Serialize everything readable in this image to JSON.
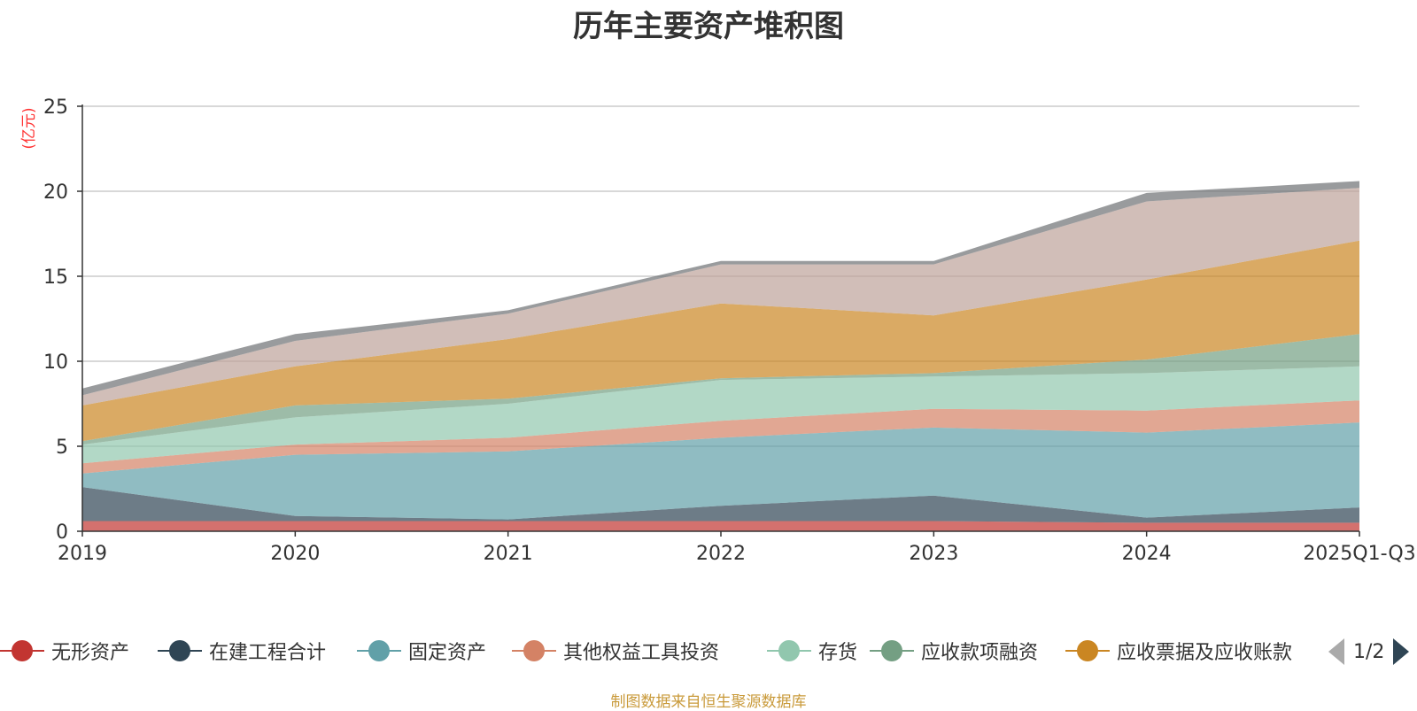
{
  "title": "历年主要资产堆积图",
  "source": "制图数据来自恒生聚源数据库",
  "chart_data": {
    "type": "area",
    "stacked": true,
    "title": "历年主要资产堆积图",
    "ylabel": "(亿元)",
    "xlabel": "",
    "ylim": [
      0,
      25
    ],
    "yticks": [
      0,
      5,
      10,
      15,
      20,
      25
    ],
    "grid": true,
    "categories": [
      "2019",
      "2020",
      "2021",
      "2022",
      "2023",
      "2024",
      "2025Q1-Q3"
    ],
    "series": [
      {
        "name": "无形资产",
        "color": "#c23531",
        "legend": true,
        "values": [
          0.6,
          0.6,
          0.6,
          0.6,
          0.6,
          0.5,
          0.5
        ]
      },
      {
        "name": "在建工程合计",
        "color": "#2f4554",
        "legend": true,
        "values": [
          2.0,
          0.3,
          0.1,
          0.9,
          1.5,
          0.3,
          0.9
        ]
      },
      {
        "name": "固定资产",
        "color": "#61a0a8",
        "legend": true,
        "values": [
          0.8,
          3.6,
          4.0,
          4.0,
          4.0,
          5.0,
          5.0
        ]
      },
      {
        "name": "其他权益工具投资",
        "color": "#d48265",
        "legend": true,
        "values": [
          0.6,
          0.6,
          0.8,
          1.0,
          1.1,
          1.3,
          1.3
        ]
      },
      {
        "name": "存货",
        "color": "#91c7ae",
        "legend": true,
        "values": [
          1.1,
          1.6,
          2.0,
          2.4,
          1.9,
          2.2,
          2.0
        ]
      },
      {
        "name": "应收款项融资",
        "color": "#749f83",
        "legend": true,
        "values": [
          0.2,
          0.7,
          0.3,
          0.1,
          0.2,
          0.8,
          1.9
        ]
      },
      {
        "name": "应收票据及应收账款",
        "color": "#ca8622",
        "legend": true,
        "values": [
          2.1,
          2.3,
          3.5,
          4.4,
          3.4,
          4.7,
          5.5
        ]
      },
      {
        "name": "",
        "color": "#bda29a",
        "legend": false,
        "values": [
          0.6,
          1.5,
          1.5,
          2.3,
          3.0,
          4.6,
          3.1
        ]
      },
      {
        "name": "",
        "color": "#6e7074",
        "legend": false,
        "values": [
          0.4,
          0.4,
          0.2,
          0.2,
          0.2,
          0.5,
          0.4
        ]
      }
    ]
  },
  "legend": {
    "page_indicator": "1/2"
  }
}
